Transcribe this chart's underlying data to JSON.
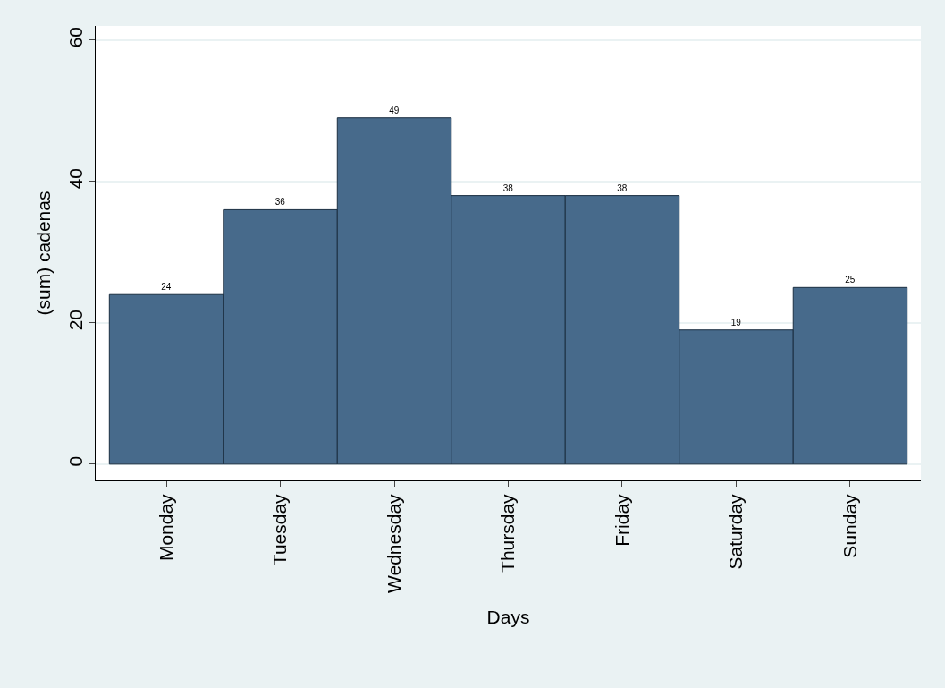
{
  "chart_data": {
    "type": "bar",
    "xlabel": "Days",
    "ylabel": "(sum) cadenas",
    "categories": [
      "Monday",
      "Tuesday",
      "Wednesday",
      "Thursday",
      "Friday",
      "Saturday",
      "Sunday"
    ],
    "values": [
      24,
      36,
      49,
      38,
      38,
      19,
      25
    ],
    "color": "#476a8b",
    "ylim": [
      -2.3,
      62
    ],
    "yticks": [
      0,
      20,
      40,
      60
    ],
    "grid": "y",
    "data_labels": true
  }
}
